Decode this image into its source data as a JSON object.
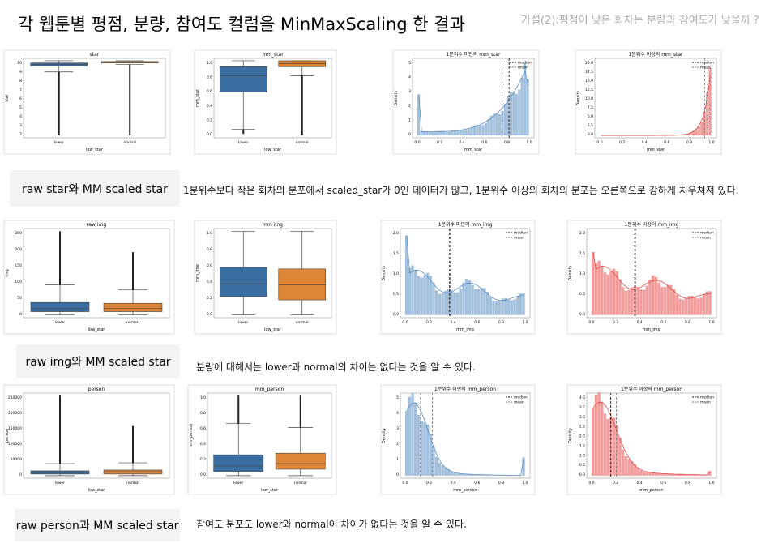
{
  "header": {
    "title": "각 웹툰별 평점, 분량, 참여도 컬럼을 MinMaxScaling 한 결과",
    "hypothesis": "가설(2):평점이 낮은 회차는 분량과 참여도가 낮을까 ?"
  },
  "rows": [
    {
      "label": "raw star와 MM scaled star",
      "description": "1분위수보다 작은 회차의 분포에서 scaled_star가 0인 데이터가 많고, 1분위수 이상의 회차의 분포는 오른쪽으로 강하게 치우쳐져 있다.",
      "charts": [
        {
          "kind": "box",
          "title": "star",
          "xlabel": "low_star",
          "ylabel": "star",
          "categories": [
            "lower",
            "normal"
          ],
          "yticks": [
            "2",
            "3",
            "4",
            "5",
            "6",
            "7",
            "8",
            "9",
            "10"
          ]
        },
        {
          "kind": "box",
          "title": "mm_star",
          "xlabel": "low_star",
          "ylabel": "mm_star",
          "categories": [
            "lower",
            "normal"
          ],
          "yticks": [
            "0.0",
            "0.2",
            "0.4",
            "0.6",
            "0.8",
            "1.0"
          ]
        },
        {
          "kind": "hist",
          "title": "1분위수 미만의 mm_star",
          "xlabel": "mm_star",
          "ylabel": "Density",
          "legend": [
            "median",
            "mean"
          ],
          "xticks": [
            "0.0",
            "0.2",
            "0.4",
            "0.6",
            "0.8",
            "1.0"
          ],
          "yticks": [
            "0",
            "1",
            "2",
            "3",
            "4",
            "5"
          ]
        },
        {
          "kind": "hist",
          "title": "1분위수 이상의 mm_star",
          "xlabel": "mm_star",
          "ylabel": "Density",
          "legend": [
            "median",
            "mean"
          ],
          "xticks": [
            "0.0",
            "0.2",
            "0.4",
            "0.6",
            "0.8",
            "1.0"
          ],
          "yticks": [
            "0.0",
            "2.5",
            "5.0",
            "7.5",
            "10.0",
            "12.5",
            "15.0",
            "17.5",
            "20.0"
          ]
        }
      ]
    },
    {
      "label": "raw img와 MM scaled star",
      "description": "분량에 대해서는 lower과 normal의 차이는 없다는 것을 알 수 있다.",
      "charts": [
        {
          "kind": "box",
          "title": "raw img",
          "xlabel": "low_star",
          "ylabel": "img",
          "categories": [
            "lower",
            "normal"
          ],
          "yticks": [
            "0",
            "50",
            "100",
            "150",
            "200",
            "250"
          ]
        },
        {
          "kind": "box",
          "title": "mm img",
          "xlabel": "low_star",
          "ylabel": "mm_img",
          "categories": [
            "lower",
            "normal"
          ],
          "yticks": [
            "0.0",
            "0.2",
            "0.4",
            "0.6",
            "0.8",
            "1.0"
          ]
        },
        {
          "kind": "hist",
          "title": "1분위수 미만의 mm_img",
          "xlabel": "mm_img",
          "ylabel": "Density",
          "legend": [
            "median",
            "mean"
          ],
          "xticks": [
            "0.0",
            "0.2",
            "0.4",
            "0.6",
            "0.8",
            "1.0"
          ],
          "yticks": [
            "0.0",
            "0.5",
            "1.0",
            "1.5",
            "2.0"
          ]
        },
        {
          "kind": "hist",
          "title": "1분위수 이상의 mm_img",
          "xlabel": "mm_img",
          "ylabel": "Density",
          "legend": [
            "median",
            "mean"
          ],
          "xticks": [
            "0.0",
            "0.2",
            "0.4",
            "0.6",
            "0.8",
            "1.0"
          ],
          "yticks": [
            "0.0",
            "0.5",
            "1.0",
            "1.5",
            "2.0"
          ]
        }
      ]
    },
    {
      "label": "raw person과 MM scaled star",
      "description": "참여도 분포도 lower와 normal이 차이가 없다는 것을 알 수 있다.",
      "charts": [
        {
          "kind": "box",
          "title": "person",
          "xlabel": "low_star",
          "ylabel": "person",
          "categories": [
            "lower",
            "normal"
          ],
          "yticks": [
            "0",
            "50000",
            "100000",
            "150000",
            "200000",
            "250000"
          ]
        },
        {
          "kind": "box",
          "title": "mm_person",
          "xlabel": "low_star",
          "ylabel": "mm_person",
          "categories": [
            "lower",
            "normal"
          ],
          "yticks": [
            "0.0",
            "0.2",
            "0.4",
            "0.6",
            "0.8",
            "1.0"
          ]
        },
        {
          "kind": "hist",
          "title": "1분위수 미만의 mm_person",
          "xlabel": "mm_person",
          "ylabel": "Density",
          "legend": [
            "median",
            "mean"
          ],
          "xticks": [
            "0.0",
            "0.2",
            "0.4",
            "0.6",
            "0.8",
            "1.0"
          ],
          "yticks": [
            "0",
            "1",
            "2",
            "3",
            "4",
            "5"
          ]
        },
        {
          "kind": "hist",
          "title": "1분위수 이상의 mm_person",
          "xlabel": "mm_person",
          "ylabel": "Density",
          "legend": [
            "median",
            "mean"
          ],
          "xticks": [
            "0.0",
            "0.2",
            "0.4",
            "0.6",
            "0.8",
            "1.0"
          ],
          "yticks": [
            "0.0",
            "0.5",
            "1.0",
            "1.5",
            "2.0",
            "2.5",
            "3.0",
            "3.5",
            "4.0"
          ]
        }
      ]
    }
  ]
}
